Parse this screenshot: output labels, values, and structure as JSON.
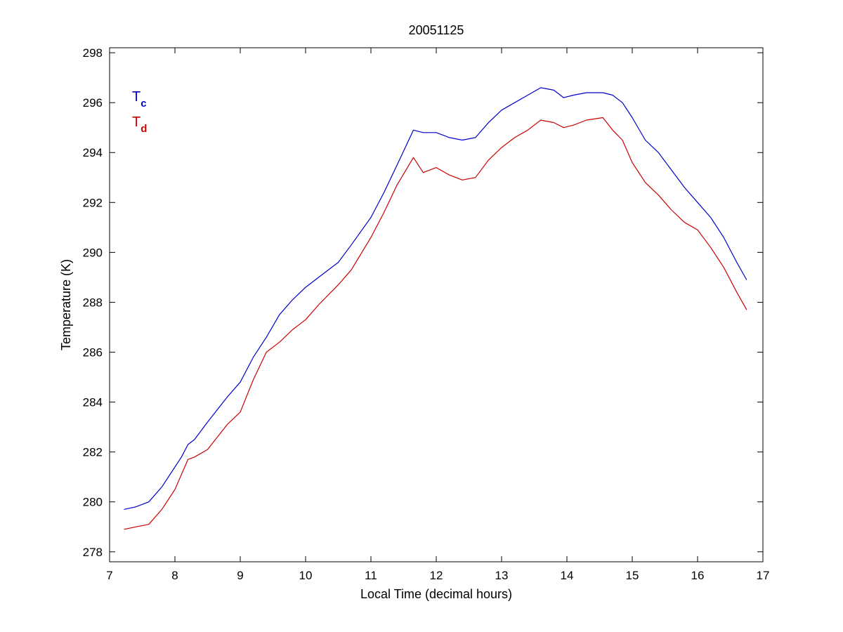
{
  "chart_data": {
    "type": "line",
    "title": "20051125",
    "xlabel": "Local Time (decimal hours)",
    "ylabel": "Temperature (K)",
    "xlim": [
      7,
      17
    ],
    "ylim": [
      277.6,
      298.2
    ],
    "xticks": [
      7,
      8,
      9,
      10,
      11,
      12,
      13,
      14,
      15,
      16,
      17
    ],
    "yticks": [
      278,
      280,
      282,
      284,
      286,
      288,
      290,
      292,
      294,
      296,
      298
    ],
    "grid": false,
    "legend_position": "top-left",
    "series": [
      {
        "name": "T",
        "subscript": "c",
        "color": "#0000cc",
        "x": [
          7.22,
          7.4,
          7.6,
          7.8,
          8.0,
          8.1,
          8.2,
          8.3,
          8.5,
          8.8,
          9.0,
          9.2,
          9.4,
          9.6,
          9.8,
          10.0,
          10.2,
          10.5,
          10.7,
          11.0,
          11.2,
          11.4,
          11.65,
          11.8,
          12.0,
          12.2,
          12.4,
          12.6,
          12.8,
          13.0,
          13.2,
          13.4,
          13.6,
          13.8,
          13.95,
          14.1,
          14.3,
          14.55,
          14.7,
          14.85,
          15.0,
          15.2,
          15.4,
          15.6,
          15.8,
          16.0,
          16.2,
          16.4,
          16.6,
          16.75
        ],
        "values": [
          279.7,
          279.8,
          280.0,
          280.6,
          281.4,
          281.8,
          282.3,
          282.5,
          283.2,
          284.2,
          284.8,
          285.8,
          286.6,
          287.5,
          288.1,
          288.6,
          289.0,
          289.6,
          290.3,
          291.4,
          292.4,
          293.5,
          294.9,
          294.8,
          294.8,
          294.6,
          294.5,
          294.6,
          295.2,
          295.7,
          296.0,
          296.3,
          296.6,
          296.5,
          296.2,
          296.3,
          296.4,
          296.4,
          296.3,
          296.0,
          295.4,
          294.5,
          294.0,
          293.3,
          292.6,
          292.0,
          291.4,
          290.6,
          289.6,
          288.9
        ]
      },
      {
        "name": "T",
        "subscript": "d",
        "color": "#cc0000",
        "x": [
          7.22,
          7.4,
          7.6,
          7.8,
          8.0,
          8.1,
          8.2,
          8.3,
          8.5,
          8.8,
          9.0,
          9.2,
          9.4,
          9.6,
          9.8,
          10.0,
          10.2,
          10.5,
          10.7,
          11.0,
          11.2,
          11.4,
          11.65,
          11.8,
          12.0,
          12.2,
          12.4,
          12.6,
          12.8,
          13.0,
          13.2,
          13.4,
          13.6,
          13.8,
          13.95,
          14.1,
          14.3,
          14.55,
          14.7,
          14.85,
          15.0,
          15.2,
          15.4,
          15.6,
          15.8,
          16.0,
          16.2,
          16.4,
          16.6,
          16.75
        ],
        "values": [
          278.9,
          279.0,
          279.1,
          279.7,
          280.5,
          281.1,
          281.7,
          281.8,
          282.1,
          283.1,
          283.6,
          284.9,
          286.0,
          286.4,
          286.9,
          287.3,
          287.9,
          288.7,
          289.3,
          290.6,
          291.6,
          292.7,
          293.8,
          293.2,
          293.4,
          293.1,
          292.9,
          293.0,
          293.7,
          294.2,
          294.6,
          294.9,
          295.3,
          295.2,
          295.0,
          295.1,
          295.3,
          295.4,
          294.9,
          294.5,
          293.6,
          292.8,
          292.3,
          291.7,
          291.2,
          290.9,
          290.2,
          289.4,
          288.4,
          287.7
        ]
      }
    ]
  }
}
